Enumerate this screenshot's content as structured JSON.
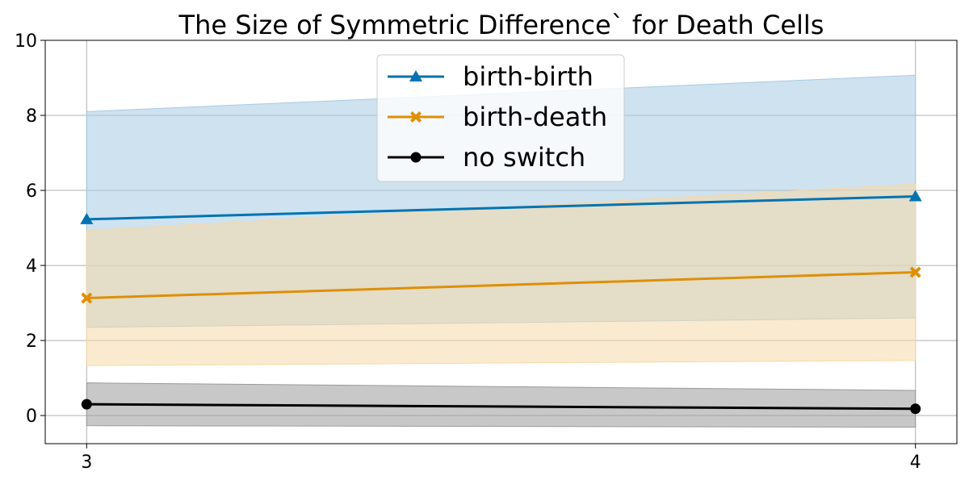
{
  "chart_data": {
    "type": "line",
    "title": "The Size of Symmetric Difference` for Death Cells",
    "xlabel": "",
    "ylabel": "",
    "x": [
      3,
      4
    ],
    "x_tick_labels": [
      "3",
      "4"
    ],
    "xlim": [
      2.95,
      4.05
    ],
    "ylim": [
      -0.75,
      10
    ],
    "y_ticks": [
      0,
      2,
      4,
      6,
      8,
      10
    ],
    "y_tick_labels": [
      "0",
      "2",
      "4",
      "6",
      "8",
      "10"
    ],
    "grid": true,
    "legend_position": "top-center",
    "series": [
      {
        "name": "birth-birth",
        "color": "#0173b2",
        "marker": "triangle",
        "values": [
          5.23,
          5.84
        ],
        "band_lower": [
          2.35,
          2.6
        ],
        "band_upper": [
          8.1,
          9.07
        ],
        "band_color": "#a6cbe3"
      },
      {
        "name": "birth-death",
        "color": "#de8f05",
        "marker": "x-filled",
        "values": [
          3.13,
          3.82
        ],
        "band_lower": [
          1.33,
          1.47
        ],
        "band_upper": [
          4.93,
          6.17
        ],
        "band_color": "#f5d9a7"
      },
      {
        "name": "no switch",
        "color": "#000000",
        "marker": "circle",
        "values": [
          0.3,
          0.18
        ],
        "band_lower": [
          -0.27,
          -0.31
        ],
        "band_upper": [
          0.87,
          0.67
        ],
        "band_color": "#9a9a9a"
      }
    ]
  }
}
